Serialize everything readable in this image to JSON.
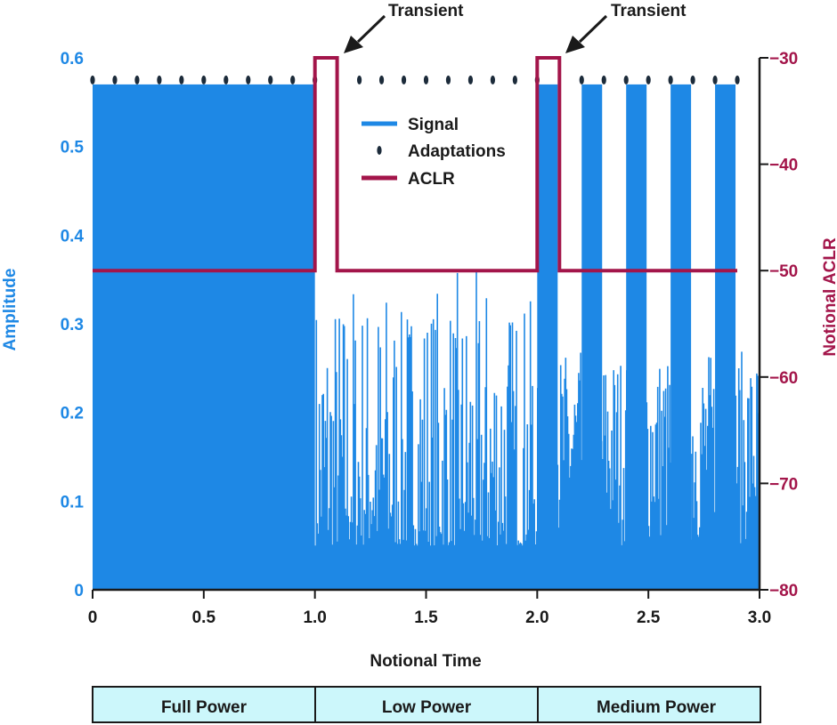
{
  "chart_data": {
    "type": "line",
    "xlabel": "Notional Time",
    "ylabel_left": "Amplitude",
    "ylabel_right": "Notional ACLR",
    "xlim": [
      0,
      3.0
    ],
    "ylim_left": [
      0,
      0.6
    ],
    "ylim_right": [
      -80,
      -30
    ],
    "x_ticks": [
      "0",
      "0.5",
      "1.0",
      "1.5",
      "2.0",
      "2.5",
      "3.0"
    ],
    "y_left_ticks": [
      "0",
      "0.1",
      "0.2",
      "0.3",
      "0.4",
      "0.5",
      "0.6"
    ],
    "y_right_ticks": [
      "−80",
      "−70",
      "−60",
      "−50",
      "−40",
      "−30"
    ],
    "legend": {
      "position": "top-center",
      "entries": [
        {
          "label": "Signal",
          "color": "#1e88e5"
        },
        {
          "label": "Adaptations",
          "color": "#1c2b3a"
        },
        {
          "label": "ACLR",
          "color": "#a3154a"
        }
      ]
    },
    "annotations": [
      {
        "text": "Transient",
        "x": 1.1
      },
      {
        "text": "Transient",
        "x": 2.1
      }
    ],
    "series": [
      {
        "name": "Signal",
        "axis": "left",
        "envelope_max": 0.57,
        "segments": [
          {
            "x_start": 0.0,
            "x_end": 1.0,
            "level": "full",
            "peak": 0.57
          },
          {
            "x_start": 1.0,
            "x_end": 2.0,
            "level": "low",
            "peak": 0.36
          },
          {
            "x_start": 2.0,
            "x_end": 3.0,
            "level": "medium",
            "peak": 0.57
          }
        ]
      },
      {
        "name": "Adaptations",
        "axis": "left",
        "y": 0.575,
        "x": [
          0.0,
          0.1,
          0.2,
          0.3,
          0.4,
          0.5,
          0.6,
          0.7,
          0.8,
          0.9,
          1.0,
          1.2,
          1.3,
          1.4,
          1.5,
          1.6,
          1.7,
          1.8,
          1.9,
          2.0,
          2.2,
          2.3,
          2.4,
          2.5,
          2.6,
          2.7,
          2.8,
          2.9
        ]
      },
      {
        "name": "ACLR",
        "axis": "right",
        "x": [
          0.0,
          1.0,
          1.0,
          1.1,
          1.1,
          2.0,
          2.0,
          2.1,
          2.1,
          2.9
        ],
        "y": [
          -50,
          -50,
          -30,
          -30,
          -50,
          -50,
          -30,
          -30,
          -50,
          -50
        ]
      }
    ],
    "power_segments": [
      {
        "label": "Full Power",
        "x_start": 0.0,
        "x_end": 1.0
      },
      {
        "label": "Low Power",
        "x_start": 1.0,
        "x_end": 2.0
      },
      {
        "label": "Medium Power",
        "x_start": 2.0,
        "x_end": 3.0
      }
    ],
    "colors": {
      "signal": "#1e88e5",
      "aclr": "#a3154a",
      "adaptations": "#1c2b3a",
      "segment_fill": "#ccf7fb",
      "axis": "#1a1a1a"
    }
  }
}
